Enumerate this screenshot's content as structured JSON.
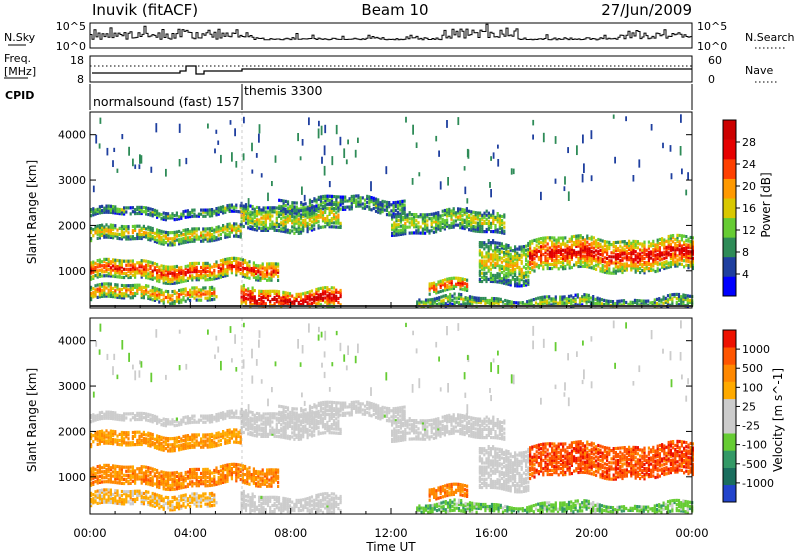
{
  "header": {
    "station": "Inuvik (fitACF)",
    "beam": "Beam 10",
    "date": "27/Jun/2009"
  },
  "chart_data": {
    "type": "heatmap",
    "x_axis": {
      "label": "Time UT",
      "ticks": [
        "00:00",
        "04:00",
        "08:00",
        "12:00",
        "16:00",
        "20:00",
        "00:00"
      ],
      "range_hours": [
        0,
        24
      ]
    },
    "y_axis": {
      "label": "Slant Range [km]",
      "ticks": [
        1000,
        2000,
        3000,
        4000
      ],
      "range_km": [
        180,
        4500
      ]
    },
    "nsky_panel": {
      "left_label": "N.Sky",
      "left_ticks": [
        "10^5",
        "10^0"
      ],
      "right_ticks": [
        "10^5",
        "10^0"
      ],
      "right_label": "N.Search"
    },
    "freq_panel": {
      "left_label_1": "Freq.",
      "left_label_2": "[MHz]",
      "left_ticks": [
        "18",
        "8"
      ],
      "right_ticks": [
        "60",
        "0"
      ],
      "right_label": "Nave"
    },
    "cpid_panel": {
      "label": "CPID",
      "segments": [
        "normalsound (fast) 157",
        "themis 3300"
      ],
      "switch_hour": 6.0
    },
    "power_panel": {
      "colorbar_label": "Power [dB]",
      "colorbar_ticks": [
        "28",
        "24",
        "20",
        "16",
        "12",
        "8",
        "4"
      ],
      "colors": [
        "#0000ff",
        "#1f3f9f",
        "#2e8b57",
        "#66cc33",
        "#d9c800",
        "#ff9900",
        "#ff4000",
        "#e60000",
        "#cc0000"
      ]
    },
    "velocity_panel": {
      "colorbar_label": "Velocity [m s^-1]",
      "colorbar_ticks": [
        "1000",
        "500",
        "100",
        "25",
        "-25",
        "-100",
        "-500",
        "-1000"
      ],
      "colors": [
        "#2244cc",
        "#1a6e5e",
        "#339966",
        "#66cc33",
        "#cccccc",
        "#cccccc",
        "#ffaa00",
        "#ff8800",
        "#ff5500",
        "#ee1100"
      ]
    },
    "echo_bands": [
      {
        "t0": 0.0,
        "t1": 6.3,
        "r0": 2250,
        "r1": 2400,
        "pw": 0.35,
        "v": 0.05
      },
      {
        "t0": 0.0,
        "t1": 6.0,
        "r0": 1700,
        "r1": 2000,
        "pw": 0.55,
        "v": -0.45
      },
      {
        "t0": 0.0,
        "t1": 7.5,
        "r0": 850,
        "r1": 1250,
        "pw": 0.8,
        "v": -0.55
      },
      {
        "t0": 0.0,
        "t1": 5.0,
        "r0": 400,
        "r1": 700,
        "pw": 0.65,
        "v": -0.3
      },
      {
        "t0": 6.0,
        "t1": 10.0,
        "r0": 200,
        "r1": 650,
        "pw": 0.95,
        "v": 0.05
      },
      {
        "t0": 7.5,
        "t1": 12.5,
        "r0": 2350,
        "r1": 2650,
        "pw": 0.3,
        "v": 0.05
      },
      {
        "t0": 12.0,
        "t1": 16.5,
        "r0": 1900,
        "r1": 2350,
        "pw": 0.45,
        "v": 0.05
      },
      {
        "t0": 13.5,
        "t1": 15.0,
        "r0": 550,
        "r1": 800,
        "pw": 0.75,
        "v": -0.6
      },
      {
        "t0": 15.5,
        "t1": 17.5,
        "r0": 800,
        "r1": 1700,
        "pw": 0.5,
        "v": 0.0
      },
      {
        "t0": 17.5,
        "t1": 24.0,
        "r0": 1050,
        "r1": 1750,
        "pw": 0.85,
        "v": -0.8
      },
      {
        "t0": 13.0,
        "t1": 24.0,
        "r0": 200,
        "r1": 450,
        "pw": 0.4,
        "v": 0.35
      },
      {
        "t0": 6.0,
        "t1": 10.0,
        "r0": 1950,
        "r1": 2450,
        "pw": 0.5,
        "v": 0.05
      }
    ]
  }
}
